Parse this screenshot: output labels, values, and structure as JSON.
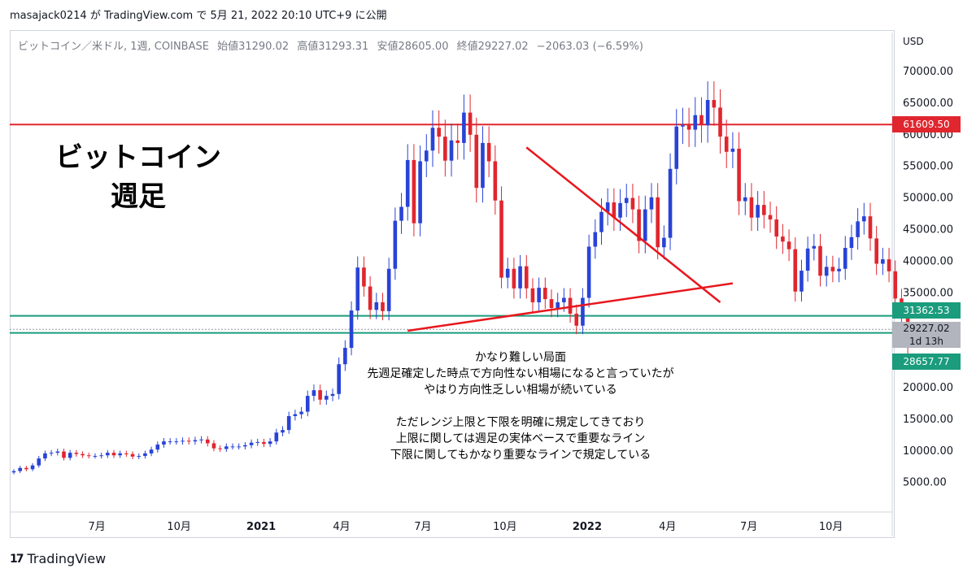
{
  "header": {
    "publish_text": "masajack0214 が TradingView.com で 5月 21, 2022 20:10 UTC+9 に公開"
  },
  "legend": {
    "symbol": "ビットコイン／米ドル, 1週, COINBASE",
    "open": "始値31290.02",
    "high": "高値31293.31",
    "low": "安値28605.00",
    "close": "終値29227.02",
    "change": "−2063.03 (−6.59%)"
  },
  "axis": {
    "unit": "USD"
  },
  "overlay": {
    "title_line1": "ビットコイン",
    "title_line2": "週足",
    "note_lines_1": [
      "かなり難しい局面",
      "先週足確定した時点で方向性ない相場になると言っていたが",
      "やはり方向性乏しい相場が続いている"
    ],
    "note_lines_2": [
      "ただレンジ上限と下限を明確に規定してきており",
      "上限に関しては週足の実体ベースで重要なライン",
      "下限に関してもかなり重要なラインで規定している"
    ]
  },
  "price_tags": {
    "resistance": "61609.50",
    "range_top": "31362.53",
    "current_price": "29227.02",
    "countdown": "1d 13h",
    "range_bottom": "28657.77"
  },
  "footer": {
    "brand": "TradingView",
    "logo_glyph": "17"
  },
  "colors": {
    "up": "#2943d6",
    "down": "#e0262e",
    "resistance_line": "#e0262e",
    "support_line": "#1a9c7d",
    "trend_line": "#e8171d"
  },
  "chart_data": {
    "type": "candlestick",
    "title": "ビットコイン／米ドル, 1週, COINBASE",
    "ylabel": "USD",
    "ylim": [
      0,
      74000
    ],
    "y_ticks": [
      5000,
      10000,
      15000,
      20000,
      25000,
      30000,
      35000,
      40000,
      45000,
      50000,
      55000,
      60000,
      65000,
      70000
    ],
    "y_tick_labels": [
      "5000.00",
      "10000.00",
      "15000.00",
      "20000.00",
      "",
      "",
      "35000.00",
      "40000.00",
      "45000.00",
      "50000.00",
      "55000.00",
      "60000.00",
      "65000.00",
      "70000.00"
    ],
    "x_ticks": [
      {
        "label": "7月",
        "date": "2020-07-01"
      },
      {
        "label": "10月",
        "date": "2020-10-01"
      },
      {
        "label": "2021",
        "date": "2021-01-01"
      },
      {
        "label": "4月",
        "date": "2021-04-01"
      },
      {
        "label": "7月",
        "date": "2021-07-01"
      },
      {
        "label": "10月",
        "date": "2021-10-01"
      },
      {
        "label": "2022",
        "date": "2022-01-01"
      },
      {
        "label": "4月",
        "date": "2022-04-01"
      },
      {
        "label": "7月",
        "date": "2022-07-01"
      },
      {
        "label": "10月",
        "date": "2022-10-01"
      }
    ],
    "x_range": [
      "2020-03-30",
      "2022-11-14"
    ],
    "close_series": [
      6800,
      7300,
      7100,
      7700,
      8800,
      9600,
      9700,
      9900,
      8900,
      9700,
      9500,
      9300,
      9200,
      9200,
      9300,
      9700,
      9300,
      9600,
      9500,
      9100,
      9200,
      9600,
      10200,
      11000,
      11500,
      11500,
      11500,
      11600,
      11500,
      11700,
      11800,
      11200,
      10400,
      10300,
      10700,
      10700,
      10700,
      10900,
      11300,
      11400,
      11100,
      11500,
      12900,
      13300,
      15500,
      15800,
      16200,
      18700,
      19600,
      18100,
      18700,
      19000,
      23700,
      26300,
      32200,
      39000,
      36000,
      32300,
      33500,
      32100,
      38800,
      46400,
      48600,
      56000,
      46000,
      55800,
      57500,
      61100,
      59700,
      55900,
      59100,
      58700,
      63500,
      60000,
      51600,
      58700,
      55800,
      49600,
      37400,
      38800,
      35700,
      39200,
      35700,
      33500,
      35800,
      34000,
      32600,
      33500,
      34200,
      31700,
      29800,
      34200,
      42300,
      44600,
      47800,
      49300,
      46900,
      49200,
      50000,
      48200,
      43200,
      48200,
      50100,
      42200,
      43700,
      54600,
      61300,
      61500,
      60800,
      63100,
      61500,
      65500,
      64300,
      59700,
      57300,
      57800,
      49500,
      50100,
      46900,
      48900,
      47300,
      46600,
      43900,
      43100,
      41900,
      35200,
      38500,
      42000,
      42400,
      37700,
      39100,
      38400,
      38800,
      42100,
      43800,
      46300,
      47100,
      43600,
      39600,
      40300,
      38400,
      34100,
      31300,
      29227
    ],
    "ohlc_note": "weekly candles, last candle O 31290.02 H 31293.31 L 28605.00 C 29227.02",
    "lines": {
      "resistance": 61609.5,
      "range_top": 31362.53,
      "range_bottom": 28657.77
    },
    "trendlines": [
      {
        "from": {
          "date": "2021-06-14",
          "price": 29000
        },
        "to": {
          "date": "2022-06-13",
          "price": 36500
        }
      },
      {
        "from": {
          "date": "2021-10-25",
          "price": 58000
        },
        "to": {
          "date": "2022-05-30",
          "price": 33500
        }
      }
    ]
  }
}
